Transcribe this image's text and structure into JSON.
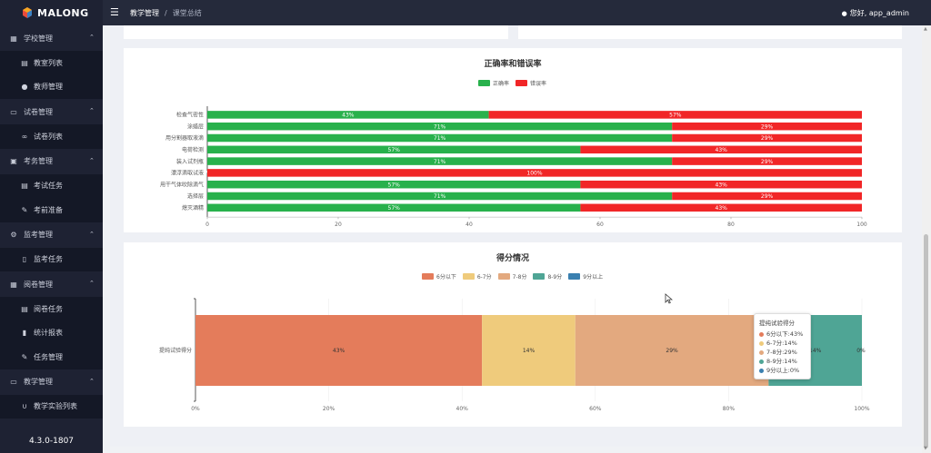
{
  "app": {
    "logo": "MALONG",
    "version": "4.3.0-1807"
  },
  "colors": {
    "sidebar": "#1e2233",
    "header": "#252a3b",
    "correct": "#28b14c",
    "wrong": "#f12627"
  },
  "header": {
    "menu_icon": "hamburger-icon",
    "breadcrumb": [
      "教学管理",
      "课堂总结"
    ],
    "user": "您好, app_admin"
  },
  "sidebar": {
    "groups": [
      {
        "label": "学校管理",
        "icon": "building-icon",
        "items": [
          {
            "label": "教室列表",
            "icon": "document-icon"
          },
          {
            "label": "教师管理",
            "icon": "user-icon"
          }
        ]
      },
      {
        "label": "试卷管理",
        "icon": "form-icon",
        "items": [
          {
            "label": "试卷列表",
            "icon": "link-icon"
          }
        ]
      },
      {
        "label": "考务管理",
        "icon": "copy-icon",
        "items": [
          {
            "label": "考试任务",
            "icon": "document-icon"
          },
          {
            "label": "考前准备",
            "icon": "edit-icon"
          }
        ]
      },
      {
        "label": "监考管理",
        "icon": "settings-icon",
        "items": [
          {
            "label": "监考任务",
            "icon": "file-icon"
          }
        ]
      },
      {
        "label": "阅卷管理",
        "icon": "grid-icon",
        "items": [
          {
            "label": "阅卷任务",
            "icon": "table-icon"
          },
          {
            "label": "统计报表",
            "icon": "bar-chart-icon"
          },
          {
            "label": "任务管理",
            "icon": "edit-box-icon"
          }
        ]
      },
      {
        "label": "教学管理",
        "icon": "cart-icon",
        "items": [
          {
            "label": "教学实验列表",
            "icon": "magnet-icon"
          }
        ]
      }
    ]
  },
  "chart_data": [
    {
      "type": "bar",
      "orientation": "horizontal",
      "stacked": true,
      "title": "正确率和错误率",
      "categories": [
        "检查气密性",
        "涂蜡层",
        "用分割器取液滴",
        "电荷检测",
        "装入试剂瓶",
        "漂浮滴取试液",
        "用干气体吹除滴气",
        "选择层",
        "熄灭酒精"
      ],
      "series": [
        {
          "name": "正确率",
          "color": "#28b14c",
          "values": [
            43,
            71,
            71,
            57,
            71,
            0,
            57,
            71,
            57
          ]
        },
        {
          "name": "错误率",
          "color": "#f12627",
          "values": [
            57,
            29,
            29,
            43,
            29,
            100,
            43,
            29,
            43
          ]
        }
      ],
      "data_labels": [
        [
          "43%",
          "71%",
          "71%",
          "57%",
          "71%",
          "0%",
          "57%",
          "71%",
          "57%"
        ],
        [
          "57%",
          "29%",
          "29%",
          "43%",
          "29%",
          "100%",
          "43%",
          "29%",
          "43%"
        ]
      ],
      "x_ticks": [
        "0",
        "20",
        "40",
        "60",
        "80",
        "100"
      ],
      "xlim": [
        0,
        100
      ],
      "legend": "top-center"
    },
    {
      "type": "bar",
      "orientation": "horizontal",
      "stacked": true,
      "title": "得分情况",
      "categories": [
        "提纯试验得分"
      ],
      "series": [
        {
          "name": "6分以下",
          "color": "#e47c5b",
          "values": [
            43
          ]
        },
        {
          "name": "6-7分",
          "color": "#efcb7c",
          "values": [
            14
          ]
        },
        {
          "name": "7-8分",
          "color": "#e3a97f",
          "values": [
            29
          ]
        },
        {
          "name": "8-9分",
          "color": "#4fa595",
          "values": [
            14
          ]
        },
        {
          "name": "9分以上",
          "color": "#3a80b0",
          "values": [
            0
          ]
        }
      ],
      "data_labels": [
        [
          "43%"
        ],
        [
          "14%"
        ],
        [
          "29%"
        ],
        [
          "14%"
        ],
        [
          "0%"
        ]
      ],
      "x_ticks": [
        "0%",
        "20%",
        "40%",
        "60%",
        "80%",
        "100%"
      ],
      "xlim": [
        0,
        100
      ],
      "legend": "top-center"
    }
  ],
  "tooltip": {
    "title": "提纯试验得分",
    "rows": [
      "6分以下:43%",
      "6-7分:14%",
      "7-8分:29%",
      "8-9分:14%",
      "9分以上:0%"
    ]
  }
}
